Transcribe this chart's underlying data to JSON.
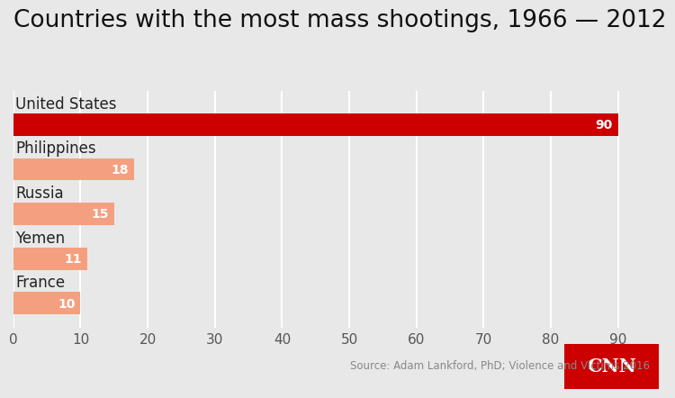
{
  "title": "Countries with the most mass shootings, 1966 — 2012",
  "categories": [
    "United States",
    "Philippines",
    "Russia",
    "Yemen",
    "France"
  ],
  "values": [
    90,
    18,
    15,
    11,
    10
  ],
  "bar_colors": [
    "#cc0000",
    "#f4a080",
    "#f4a080",
    "#f4a080",
    "#f4a080"
  ],
  "background_color": "#e8e8e8",
  "plot_bg_color": "#e8e8e8",
  "title_fontsize": 19,
  "label_fontsize": 12,
  "value_fontsize": 10,
  "tick_fontsize": 11,
  "xticks": [
    0,
    10,
    20,
    30,
    40,
    50,
    60,
    70,
    80,
    90
  ],
  "xlim": [
    0,
    93
  ],
  "source_text": "Source: Adam Lankford, PhD; Violence and Victims 2016",
  "cnn_color": "#cc0000",
  "grid_color": "#ffffff",
  "text_color": "#222222",
  "source_color": "#888888"
}
